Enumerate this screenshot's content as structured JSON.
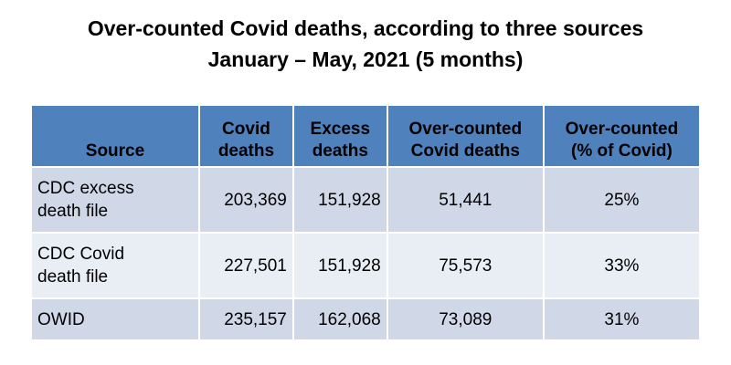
{
  "title": {
    "line1": "Over-counted Covid deaths, according to three sources",
    "line2": "January – May, 2021 (5 months)"
  },
  "colors": {
    "header_bg": "#4f81bd",
    "row_dark": "#d0d8e8",
    "row_light": "#e9edf4"
  },
  "chart_data": {
    "type": "table",
    "title": "Over-counted Covid deaths, according to three sources January – May, 2021 (5 months)",
    "columns": [
      {
        "line1": "Source",
        "line2": ""
      },
      {
        "line1": "Covid",
        "line2": "deaths"
      },
      {
        "line1": "Excess",
        "line2": "deaths"
      },
      {
        "line1": "Over-counted",
        "line2": "Covid deaths"
      },
      {
        "line1": "Over-counted",
        "line2": "(% of Covid)"
      }
    ],
    "rows": [
      {
        "source_line1": "CDC excess",
        "source_line2": "death file",
        "covid_deaths": "203,369",
        "excess_deaths": "151,928",
        "over_counted": "51,441",
        "over_counted_pct": "25%"
      },
      {
        "source_line1": "CDC Covid",
        "source_line2": "death file",
        "covid_deaths": "227,501",
        "excess_deaths": "151,928",
        "over_counted": "75,573",
        "over_counted_pct": "33%"
      },
      {
        "source_line1": "OWID",
        "source_line2": "",
        "covid_deaths": "235,157",
        "excess_deaths": "162,068",
        "over_counted": "73,089",
        "over_counted_pct": "31%"
      }
    ]
  }
}
